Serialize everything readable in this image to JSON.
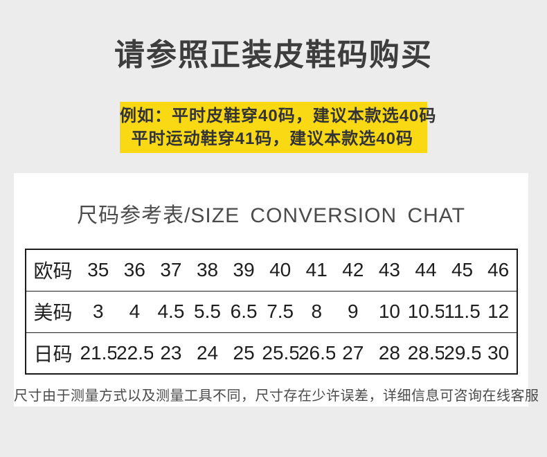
{
  "colors": {
    "page_background": "#ececec",
    "highlight_yellow": "#f9d814",
    "card_background": "#ffffff",
    "table_border": "#1c1c1c",
    "title_text": "#3d3d3d"
  },
  "header": {
    "title": "请参照正装皮鞋码购买"
  },
  "example": {
    "line1": "例如：平时皮鞋穿40码，建议本款选40码",
    "line2": "平时运动鞋穿41码，建议本款选40码"
  },
  "card": {
    "title": "尺码参考表/SIZE CONVERSION CHAT",
    "note": "尺寸由于测量方式以及测量工具不同，尺寸存在少许误差，详细信息可咨询在线客服"
  },
  "chart_data": {
    "type": "table",
    "title": "尺码参考表/SIZE CONVERSION CHAT",
    "rows": [
      {
        "label": "欧码",
        "values": [
          "35",
          "36",
          "37",
          "38",
          "39",
          "40",
          "41",
          "42",
          "43",
          "44",
          "45",
          "46"
        ]
      },
      {
        "label": "美码",
        "values": [
          "3",
          "4",
          "4.5",
          "5.5",
          "6.5",
          "7.5",
          "8",
          "9",
          "10",
          "10.5",
          "11.5",
          "12"
        ]
      },
      {
        "label": "日码",
        "values": [
          "21.5",
          "22.5",
          "23",
          "24",
          "25",
          "25.5",
          "26.5",
          "27",
          "28",
          "28.5",
          "29.5",
          "30"
        ]
      }
    ]
  }
}
